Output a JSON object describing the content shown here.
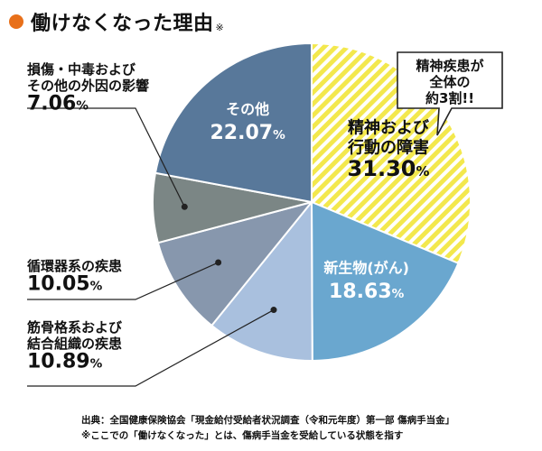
{
  "title": "働けなくなった理由",
  "title_note": "※",
  "callout": [
    "精神疾患が",
    "全体の",
    "約3割!!"
  ],
  "footnote": {
    "source": "出典：全国健康保険協会「現金給付受給者状況調査（令和元年度）第一部 傷病手当金」",
    "note": "※ここでの「働けなくなった」とは、傷病手当金を受給している状態を指す"
  },
  "colors": {
    "accent": "#e8701a",
    "mental_stripe_a": "#f3e84d",
    "mental_stripe_b": "#ffffff",
    "cancer": "#6aa7cf",
    "musculoskeletal": "#a9c0de",
    "circulatory": "#8797ad",
    "injury": "#7b8685",
    "other": "#58789a"
  },
  "chart_data": {
    "type": "pie",
    "unit": "%",
    "start_angle_deg": 0,
    "direction": "clockwise",
    "slices": [
      {
        "name": "精神および行動の障害",
        "lines": [
          "精神および",
          "行動の障害"
        ],
        "value": 31.3,
        "label": "31.30",
        "color_key": "mental",
        "label_inside": true
      },
      {
        "name": "新生物（がん）",
        "lines": [
          "新生物(がん)"
        ],
        "value": 18.63,
        "label": "18.63",
        "color_key": "cancer",
        "label_inside": true
      },
      {
        "name": "筋骨格系および結合組織の疾患",
        "lines": [
          "筋骨格系および",
          "結合組織の疾患"
        ],
        "value": 10.89,
        "label": "10.89",
        "color_key": "musculoskeletal",
        "label_inside": false
      },
      {
        "name": "循環器系の疾患",
        "lines": [
          "循環器系の疾患"
        ],
        "value": 10.05,
        "label": "10.05",
        "color_key": "circulatory",
        "label_inside": false
      },
      {
        "name": "損傷・中毒およびその他の外因の影響",
        "lines": [
          "損傷・中毒および",
          "その他の外因の影響"
        ],
        "value": 7.06,
        "label": "7.06",
        "color_key": "injury",
        "label_inside": false
      },
      {
        "name": "その他",
        "lines": [
          "その他"
        ],
        "value": 22.07,
        "label": "22.07",
        "color_key": "other",
        "label_inside": true
      }
    ]
  }
}
